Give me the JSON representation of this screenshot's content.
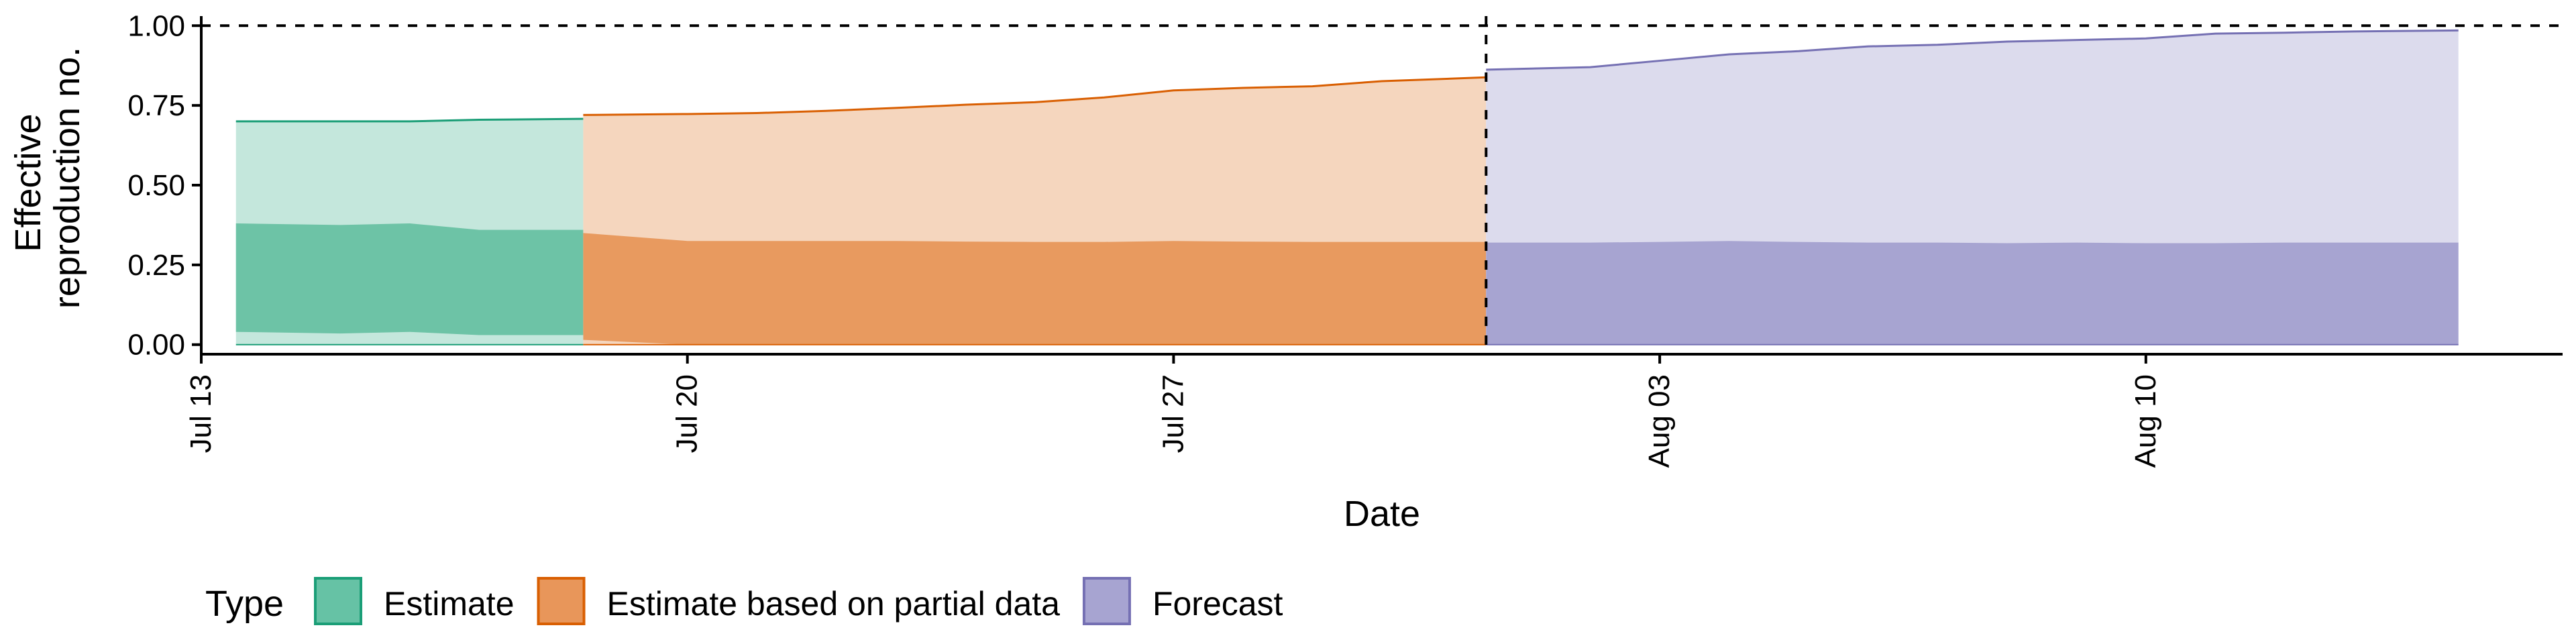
{
  "chart_data": {
    "type": "area",
    "xlabel": "Date",
    "ylabel_lines": [
      "Effective",
      "reproduction no."
    ],
    "ylim": [
      -0.03,
      1.03
    ],
    "y_ticks": [
      0.0,
      0.25,
      0.5,
      0.75,
      1.0
    ],
    "y_tick_labels": [
      "0.00",
      "0.25",
      "0.50",
      "0.75",
      "1.00"
    ],
    "x_range": [
      "2020-07-13",
      "2020-08-16"
    ],
    "x_ticks": [
      "2020-07-13",
      "2020-07-20",
      "2020-07-27",
      "2020-08-03",
      "2020-08-10"
    ],
    "x_tick_labels": [
      "Jul 13",
      "Jul 20",
      "Jul 27",
      "Aug 03",
      "Aug 10"
    ],
    "hlines": [
      1.0
    ],
    "vlines": [
      "2020-07-31"
    ],
    "grid": false,
    "legend": {
      "title": "Type",
      "placement": "bottom-left",
      "items": [
        {
          "label": "Estimate",
          "fill": "#66c2a5",
          "stroke": "#1b9e77"
        },
        {
          "label": "Estimate based on partial data",
          "fill": "#e8965a",
          "stroke": "#d95f02"
        },
        {
          "label": "Forecast",
          "fill": "#a7a4d1",
          "stroke": "#7570b3"
        }
      ]
    },
    "series": [
      {
        "name": "Estimate",
        "line_color": "#1b9e77",
        "outer_color": "#c4e7dc",
        "inner_color": "#6dc3a6",
        "x": [
          "2020-07-14",
          "2020-07-15",
          "2020-07-16",
          "2020-07-17",
          "2020-07-18"
        ],
        "upper90": [
          0.7,
          0.7,
          0.7,
          0.705,
          0.708
        ],
        "lower90": [
          0.0,
          0.0,
          0.0,
          0.0,
          0.0
        ],
        "upper50": [
          0.38,
          0.375,
          0.38,
          0.36,
          0.36
        ],
        "lower50": [
          0.04,
          0.035,
          0.04,
          0.03,
          0.03
        ]
      },
      {
        "name": "Estimate based on partial data",
        "line_color": "#d95f02",
        "outer_color": "#f5d6be",
        "inner_color": "#e89a5f",
        "x": [
          "2020-07-19",
          "2020-07-20",
          "2020-07-21",
          "2020-07-22",
          "2020-07-23",
          "2020-07-24",
          "2020-07-25",
          "2020-07-26",
          "2020-07-27",
          "2020-07-28",
          "2020-07-29",
          "2020-07-30",
          "2020-07-31"
        ],
        "upper90": [
          0.72,
          0.723,
          0.726,
          0.733,
          0.742,
          0.752,
          0.76,
          0.775,
          0.797,
          0.805,
          0.81,
          0.826,
          0.838
        ],
        "lower90": [
          0.0,
          0.0,
          0.0,
          0.0,
          0.0,
          0.0,
          0.0,
          0.0,
          0.0,
          0.0,
          0.0,
          0.0,
          0.0
        ],
        "upper50": [
          0.35,
          0.325,
          0.325,
          0.325,
          0.325,
          0.323,
          0.322,
          0.322,
          0.325,
          0.323,
          0.322,
          0.322,
          0.322
        ],
        "lower50": [
          0.015,
          0.0,
          0.0,
          0.0,
          0.0,
          0.0,
          0.0,
          0.0,
          0.0,
          0.0,
          0.0,
          0.0,
          0.0
        ]
      },
      {
        "name": "Forecast",
        "line_color": "#7570b3",
        "outer_color": "#dcdbed",
        "inner_color": "#a7a4d1",
        "x": [
          "2020-08-01",
          "2020-08-02",
          "2020-08-03",
          "2020-08-04",
          "2020-08-05",
          "2020-08-06",
          "2020-08-07",
          "2020-08-08",
          "2020-08-09",
          "2020-08-10",
          "2020-08-11",
          "2020-08-12",
          "2020-08-13",
          "2020-08-14"
        ],
        "upper90": [
          0.862,
          0.87,
          0.89,
          0.91,
          0.92,
          0.935,
          0.94,
          0.95,
          0.955,
          0.96,
          0.975,
          0.978,
          0.982,
          0.985
        ],
        "lower90": [
          0.0,
          0.0,
          0.0,
          0.0,
          0.0,
          0.0,
          0.0,
          0.0,
          0.0,
          0.0,
          0.0,
          0.0,
          0.0,
          0.0
        ],
        "upper50": [
          0.32,
          0.32,
          0.322,
          0.325,
          0.322,
          0.32,
          0.32,
          0.318,
          0.32,
          0.318,
          0.318,
          0.32,
          0.32,
          0.32
        ],
        "lower50": [
          0.0,
          0.0,
          0.0,
          0.0,
          0.0,
          0.0,
          0.0,
          0.0,
          0.0,
          0.0,
          0.0,
          0.0,
          0.0,
          0.0
        ]
      }
    ]
  }
}
